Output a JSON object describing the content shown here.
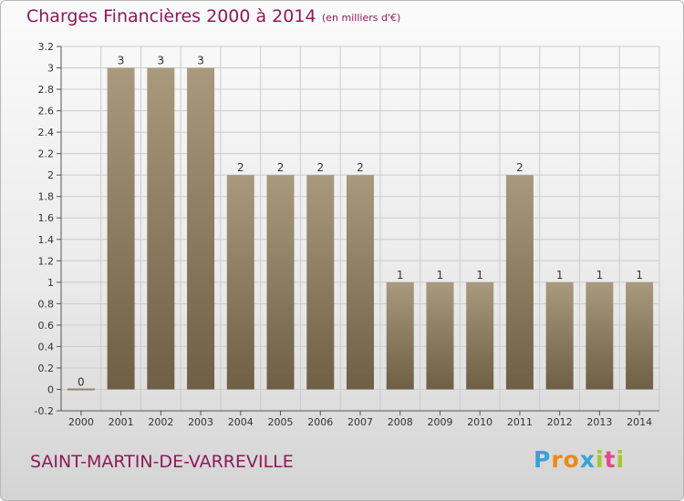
{
  "title": "Charges Financières 2000 à 2014",
  "subtitle": "(en milliers d'€)",
  "commune": "SAINT-MARTIN-DE-VARREVILLE",
  "logo": {
    "letters": [
      "P",
      "r",
      "o",
      "x",
      "i",
      "t",
      "i"
    ],
    "colors": [
      "#3aa0d8",
      "#e98a1a",
      "#e98a1a",
      "#3aa0d8",
      "#a3c82a",
      "#e24a8a",
      "#a3c82a"
    ]
  },
  "colors": {
    "bar_top": "#a99a7d",
    "bar_bottom": "#6e5f45",
    "grid": "#cccccc",
    "axis": "#555555"
  },
  "chart_data": {
    "type": "bar",
    "title": "Charges Financières 2000 à 2014",
    "subtitle": "(en milliers d'€)",
    "categories": [
      "2000",
      "2001",
      "2002",
      "2003",
      "2004",
      "2005",
      "2006",
      "2007",
      "2008",
      "2009",
      "2010",
      "2011",
      "2012",
      "2013",
      "2014"
    ],
    "values": [
      0,
      3,
      3,
      3,
      2,
      2,
      2,
      2,
      1,
      1,
      1,
      2,
      1,
      1,
      1
    ],
    "data_labels": [
      "0",
      "3",
      "3",
      "3",
      "2",
      "2",
      "2",
      "2",
      "1",
      "1",
      "1",
      "2",
      "1",
      "1",
      "1"
    ],
    "ylim": [
      -0.2,
      3.2
    ],
    "yticks": [
      -0.2,
      0,
      0.2,
      0.4,
      0.6,
      0.8,
      1,
      1.2,
      1.4,
      1.6,
      1.8,
      2,
      2.2,
      2.4,
      2.6,
      2.8,
      3,
      3.2
    ],
    "ytick_labels": [
      "-0.2",
      "0",
      "0.2",
      "0.4",
      "0.6",
      "0.8",
      "1",
      "1.2",
      "1.4",
      "1.6",
      "1.8",
      "2",
      "2.2",
      "2.4",
      "2.6",
      "2.8",
      "3",
      "3.2"
    ],
    "grid": true,
    "xlabel": "",
    "ylabel": ""
  }
}
